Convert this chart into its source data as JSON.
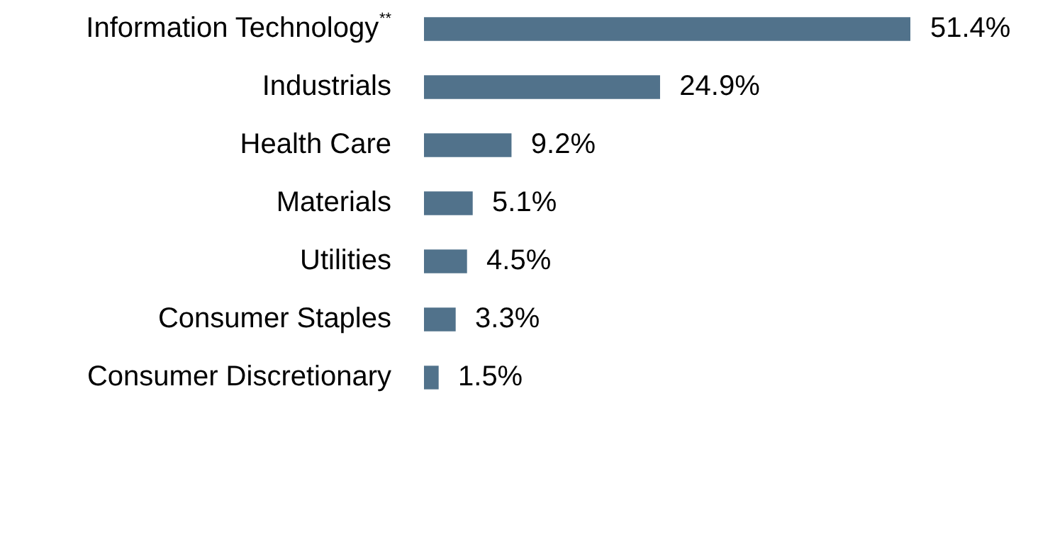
{
  "chart_data": {
    "type": "bar",
    "orientation": "horizontal",
    "categories": [
      "Information Technology$^{**}$",
      "Industrials",
      "Health Care",
      "Materials",
      "Utilities",
      "Consumer Staples",
      "Consumer Discretionary"
    ],
    "values": [
      51.4,
      24.9,
      9.2,
      5.1,
      4.5,
      3.3,
      1.5
    ],
    "value_labels": [
      "51.4%",
      "24.9%",
      "9.2%",
      "5.1%",
      "4.5%",
      "3.3%",
      "1.5%"
    ],
    "color": "#51728b"
  }
}
